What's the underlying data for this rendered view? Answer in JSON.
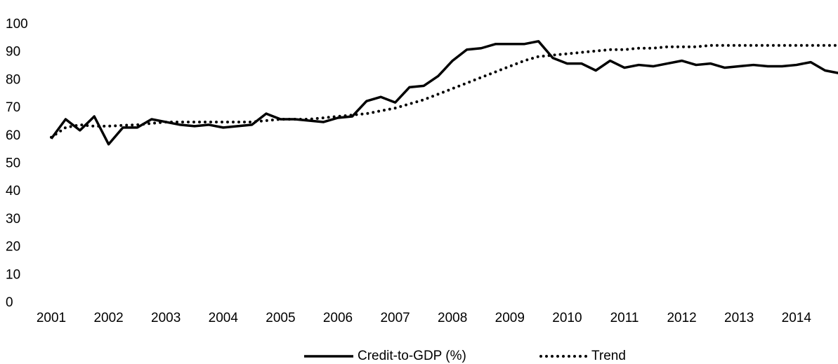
{
  "chart_data": {
    "type": "line",
    "categories": [
      "2001",
      null,
      null,
      null,
      "2002",
      null,
      null,
      null,
      "2003",
      null,
      null,
      null,
      "2004",
      null,
      null,
      null,
      "2005",
      null,
      null,
      null,
      "2006",
      null,
      null,
      null,
      "2007",
      null,
      null,
      null,
      "2008",
      null,
      null,
      null,
      "2009",
      null,
      null,
      null,
      "2010",
      null,
      null,
      null,
      "2011",
      null,
      null,
      null,
      "2012",
      null,
      null,
      null,
      "2013",
      null,
      null,
      null,
      "2014",
      null,
      null,
      null
    ],
    "series": [
      {
        "name": "Credit-to-GDP (%)",
        "color": "#000000",
        "style": "solid",
        "values": [
          59,
          66,
          62,
          67,
          57,
          63,
          63,
          66,
          65,
          64,
          63.5,
          64,
          63,
          63.5,
          64,
          68,
          66,
          66,
          65.5,
          65,
          66.5,
          67,
          72.5,
          74,
          72,
          77.5,
          78,
          81.5,
          87,
          91,
          91.5,
          93,
          93,
          93,
          94,
          88,
          86,
          86,
          83.5,
          87,
          84.5,
          85.5,
          85,
          86,
          87,
          85.5,
          86,
          84.5,
          85,
          85.5,
          85,
          85,
          85.5,
          86.5,
          83.5,
          82.5
        ]
      },
      {
        "name": "Trend",
        "color": "#000000",
        "style": "dotted",
        "values": [
          59.5,
          63,
          64,
          63.5,
          63.5,
          63.8,
          64,
          64.5,
          65,
          65,
          65,
          65,
          65,
          65,
          65,
          65.5,
          66,
          66,
          66,
          66.5,
          67,
          67.5,
          68,
          69,
          70,
          71.5,
          73,
          75,
          77,
          79,
          81,
          83,
          85,
          87,
          88.5,
          89,
          89.5,
          90,
          90.5,
          91,
          91,
          91.5,
          91.5,
          92,
          92,
          92,
          92.5,
          92.5,
          92.5,
          92.5,
          92.5,
          92.5,
          92.5,
          92.5,
          92.5,
          92.5
        ]
      }
    ],
    "ylim": [
      0,
      100
    ],
    "yticks": [
      0,
      10,
      20,
      30,
      40,
      50,
      60,
      70,
      80,
      90,
      100
    ],
    "grid": false,
    "legend": "bottom"
  }
}
